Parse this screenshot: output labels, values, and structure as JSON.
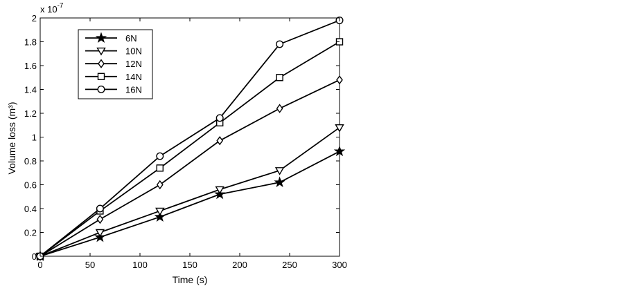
{
  "chart_data": {
    "type": "line",
    "title": "",
    "xlabel": "Time (s)",
    "ylabel": "Volume loss (m³)",
    "y_exponent_label": "x 10",
    "y_exponent_power": "-7",
    "xlim": [
      0,
      300
    ],
    "ylim": [
      0,
      2
    ],
    "x_ticks": [
      0,
      50,
      100,
      150,
      200,
      250,
      300
    ],
    "y_ticks": [
      0,
      0.2,
      0.4,
      0.6,
      0.8,
      1,
      1.2,
      1.4,
      1.6,
      1.8,
      2
    ],
    "x_tick_labels": [
      "0",
      "50",
      "100",
      "150",
      "200",
      "250",
      "300"
    ],
    "y_tick_labels": [
      "0",
      "0.2",
      "0.4",
      "0.6",
      "0.8",
      "1",
      "1.2",
      "1.4",
      "1.6",
      "1.8",
      "2"
    ],
    "grid": false,
    "legend_position": "top-left",
    "x": [
      0,
      60,
      120,
      180,
      240,
      300
    ],
    "series": [
      {
        "name": "6N",
        "marker": "star",
        "values": [
          0,
          0.16,
          0.33,
          0.52,
          0.62,
          0.88
        ]
      },
      {
        "name": "10N",
        "marker": "triangle-down",
        "values": [
          0,
          0.2,
          0.38,
          0.56,
          0.72,
          1.08
        ]
      },
      {
        "name": "12N",
        "marker": "diamond",
        "values": [
          0,
          0.31,
          0.6,
          0.97,
          1.24,
          1.48
        ]
      },
      {
        "name": "14N",
        "marker": "square",
        "values": [
          0,
          0.38,
          0.74,
          1.12,
          1.5,
          1.8
        ]
      },
      {
        "name": "16N",
        "marker": "circle",
        "values": [
          0,
          0.4,
          0.84,
          1.16,
          1.78,
          1.98
        ]
      }
    ],
    "line_color": "#000000"
  }
}
